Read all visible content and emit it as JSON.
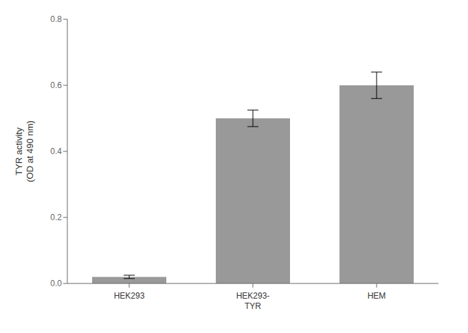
{
  "chart_data": {
    "type": "bar",
    "categories": [
      "HEK293",
      "HEK293-\nTYR",
      "HEM"
    ],
    "values": [
      0.02,
      0.5,
      0.6
    ],
    "errors": [
      0.005,
      0.025,
      0.04
    ],
    "color": "#999999",
    "ylabel": "TYR activity\n(OD at 490 nm)",
    "ylim": [
      0,
      0.8
    ],
    "yticks": [
      {
        "value": 0,
        "label": "0.0"
      },
      0.2,
      0.4,
      0.6,
      0.8
    ],
    "grid": false
  }
}
